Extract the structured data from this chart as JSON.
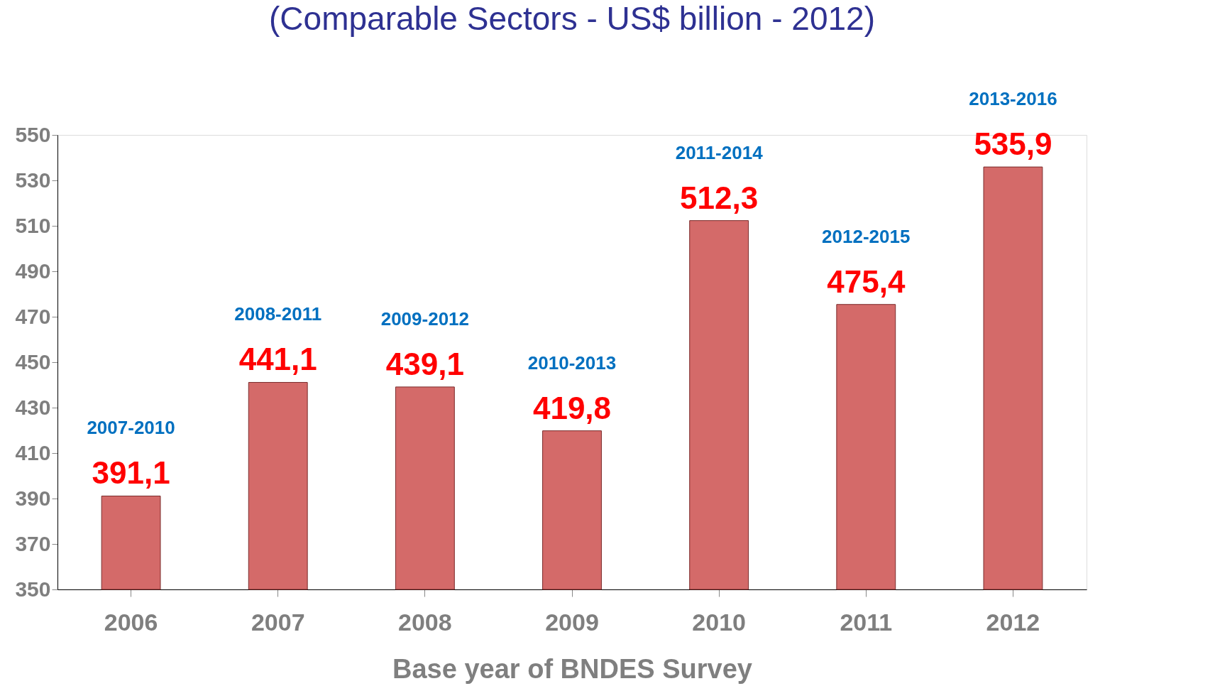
{
  "chart_data": {
    "type": "bar",
    "title": "(Comparable Sectors - US$ billion - 2012)",
    "xlabel": "Base year of BNDES Survey",
    "categories": [
      "2006",
      "2007",
      "2008",
      "2009",
      "2010",
      "2011",
      "2012"
    ],
    "values": [
      391.1,
      441.1,
      439.1,
      419.8,
      512.3,
      475.4,
      535.9
    ],
    "value_labels": [
      "391,1",
      "441,1",
      "439,1",
      "419,8",
      "512,3",
      "475,4",
      "535,9"
    ],
    "color": "#d46a69",
    "ylim": [
      350,
      550
    ],
    "yticks": [
      350,
      370,
      390,
      410,
      430,
      450,
      470,
      490,
      510,
      530,
      550
    ],
    "grid": false,
    "annotations": [
      "2007-2010",
      "2008-2011",
      "2009-2012",
      "2010-2013",
      "2011-2014",
      "2012-2015",
      "2013-2016"
    ]
  }
}
